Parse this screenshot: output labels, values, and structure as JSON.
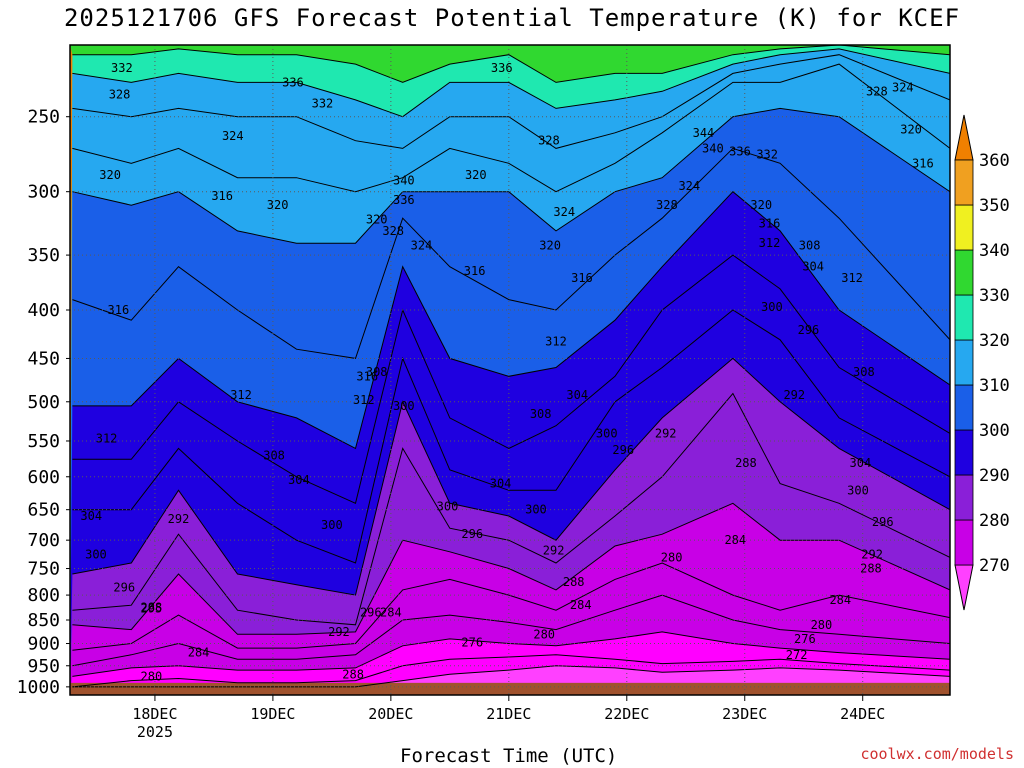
{
  "title": "2025121706 GFS Forecast Potential Temperature (K) for KCEF",
  "xlabel": "Forecast Time (UTC)",
  "credit": "coolwx.com/models",
  "chart_data": {
    "type": "contour-filled time-height cross section",
    "y_axis": {
      "quantity": "pressure level (hPa)",
      "orientation": "decreasing upward",
      "ticks": [
        250,
        300,
        350,
        400,
        450,
        500,
        550,
        600,
        650,
        700,
        750,
        800,
        850,
        900,
        950,
        1000
      ],
      "range": [
        1020,
        210
      ]
    },
    "x_axis": {
      "ticks": [
        "18DEC",
        "19DEC",
        "20DEC",
        "21DEC",
        "22DEC",
        "23DEC",
        "24DEC"
      ],
      "year_label": "2025",
      "range_days": [
        17.28,
        24.74
      ]
    },
    "grid": true,
    "colorbar": {
      "ticks": [
        270,
        280,
        290,
        300,
        310,
        320,
        330,
        340,
        350,
        360
      ],
      "colors": [
        "#ff00ff",
        "#c800e6",
        "#8a1fd8",
        "#1f00e0",
        "#1a5fe8",
        "#26a8f0",
        "#1fe8b0",
        "#30d830",
        "#f0f020",
        "#f0a020"
      ],
      "bottom_color": "#ff40ff",
      "top_color": "#f08000"
    },
    "isentropes": [
      {
        "theta": 272,
        "p": [
          1000,
          1000,
          1000,
          1000,
          1000,
          1000,
          985,
          970,
          960,
          950,
          955,
          965,
          960,
          955,
          960,
          975
        ]
      },
      {
        "theta": 276,
        "p": [
          1000,
          985,
          980,
          990,
          990,
          985,
          950,
          935,
          930,
          925,
          935,
          945,
          940,
          935,
          945,
          960
        ]
      },
      {
        "theta": 280,
        "p": [
          975,
          955,
          950,
          960,
          960,
          955,
          905,
          890,
          900,
          905,
          890,
          875,
          900,
          910,
          920,
          935
        ]
      },
      {
        "theta": 284,
        "p": [
          950,
          925,
          900,
          935,
          935,
          925,
          850,
          840,
          855,
          870,
          830,
          800,
          850,
          870,
          880,
          900
        ]
      },
      {
        "theta": 288,
        "p": [
          915,
          900,
          840,
          910,
          910,
          900,
          790,
          770,
          800,
          830,
          770,
          740,
          800,
          830,
          800,
          845
        ]
      },
      {
        "theta": 292,
        "p": [
          860,
          870,
          760,
          880,
          880,
          875,
          700,
          720,
          750,
          790,
          710,
          690,
          640,
          700,
          700,
          790
        ]
      },
      {
        "theta": 296,
        "p": [
          830,
          820,
          690,
          830,
          850,
          860,
          560,
          680,
          700,
          740,
          660,
          600,
          490,
          610,
          640,
          730
        ]
      },
      {
        "theta": 300,
        "p": [
          760,
          740,
          620,
          760,
          780,
          800,
          500,
          640,
          660,
          700,
          590,
          520,
          450,
          500,
          560,
          650
        ]
      },
      {
        "theta": 304,
        "p": [
          650,
          650,
          560,
          640,
          700,
          740,
          450,
          590,
          620,
          620,
          500,
          460,
          400,
          430,
          520,
          600
        ]
      },
      {
        "theta": 308,
        "p": [
          575,
          575,
          500,
          550,
          600,
          640,
          400,
          520,
          560,
          530,
          470,
          400,
          350,
          380,
          460,
          540
        ]
      },
      {
        "theta": 312,
        "p": [
          505,
          505,
          450,
          500,
          520,
          560,
          360,
          450,
          470,
          460,
          410,
          360,
          300,
          330,
          400,
          480
        ]
      },
      {
        "theta": 316,
        "p": [
          390,
          410,
          360,
          400,
          440,
          450,
          320,
          360,
          390,
          400,
          350,
          320,
          270,
          280,
          320,
          430
        ]
      },
      {
        "theta": 320,
        "p": [
          300,
          310,
          300,
          330,
          340,
          340,
          300,
          300,
          300,
          330,
          300,
          290,
          250,
          245,
          250,
          300
        ]
      },
      {
        "theta": 324,
        "p": [
          270,
          280,
          270,
          290,
          290,
          300,
          290,
          270,
          280,
          300,
          280,
          260,
          230,
          230,
          220,
          270
        ]
      },
      {
        "theta": 328,
        "p": [
          245,
          250,
          245,
          250,
          250,
          265,
          270,
          250,
          250,
          270,
          260,
          250,
          225,
          220,
          215,
          240
        ]
      },
      {
        "theta": 332,
        "p": [
          225,
          230,
          225,
          230,
          230,
          240,
          250,
          230,
          230,
          245,
          240,
          235,
          220,
          215,
          212,
          225
        ]
      },
      {
        "theta": 336,
        "p": [
          215,
          215,
          212,
          215,
          215,
          220,
          230,
          220,
          215,
          230,
          225,
          225,
          215,
          212,
          210,
          215
        ]
      }
    ],
    "isentrope_times_days": [
      17.3,
      17.8,
      18.2,
      18.7,
      19.2,
      19.7,
      20.1,
      20.5,
      21.0,
      21.4,
      21.9,
      22.3,
      22.9,
      23.3,
      23.8,
      24.74
    ],
    "labels": [
      {
        "t": "332",
        "d": 17.72,
        "p": 222
      },
      {
        "t": "328",
        "d": 17.7,
        "p": 237
      },
      {
        "t": "336",
        "d": 19.17,
        "p": 230
      },
      {
        "t": "332",
        "d": 19.42,
        "p": 242
      },
      {
        "t": "324",
        "d": 18.66,
        "p": 262
      },
      {
        "t": "336",
        "d": 20.94,
        "p": 222
      },
      {
        "t": "328",
        "d": 21.34,
        "p": 265
      },
      {
        "t": "344",
        "d": 22.65,
        "p": 260
      },
      {
        "t": "340",
        "d": 22.73,
        "p": 270
      },
      {
        "t": "336",
        "d": 22.96,
        "p": 272
      },
      {
        "t": "332",
        "d": 23.19,
        "p": 274
      },
      {
        "t": "328",
        "d": 24.12,
        "p": 235
      },
      {
        "t": "324",
        "d": 24.34,
        "p": 233
      },
      {
        "t": "320",
        "d": 24.41,
        "p": 258
      },
      {
        "t": "316",
        "d": 24.51,
        "p": 280
      },
      {
        "t": "320",
        "d": 17.62,
        "p": 288
      },
      {
        "t": "316",
        "d": 18.57,
        "p": 303
      },
      {
        "t": "320",
        "d": 19.04,
        "p": 310
      },
      {
        "t": "340",
        "d": 20.11,
        "p": 292
      },
      {
        "t": "336",
        "d": 20.11,
        "p": 306
      },
      {
        "t": "328",
        "d": 20.02,
        "p": 330
      },
      {
        "t": "320",
        "d": 19.88,
        "p": 321
      },
      {
        "t": "324",
        "d": 20.26,
        "p": 342
      },
      {
        "t": "320",
        "d": 20.72,
        "p": 288
      },
      {
        "t": "324",
        "d": 21.47,
        "p": 315
      },
      {
        "t": "320",
        "d": 21.35,
        "p": 342
      },
      {
        "t": "316",
        "d": 21.62,
        "p": 370
      },
      {
        "t": "316",
        "d": 20.71,
        "p": 364
      },
      {
        "t": "328",
        "d": 22.34,
        "p": 310
      },
      {
        "t": "324",
        "d": 22.53,
        "p": 296
      },
      {
        "t": "320",
        "d": 23.14,
        "p": 310
      },
      {
        "t": "316",
        "d": 23.21,
        "p": 324
      },
      {
        "t": "312",
        "d": 23.21,
        "p": 340
      },
      {
        "t": "308",
        "d": 23.55,
        "p": 342
      },
      {
        "t": "304",
        "d": 23.58,
        "p": 360
      },
      {
        "t": "312",
        "d": 23.91,
        "p": 370
      },
      {
        "t": "316",
        "d": 17.69,
        "p": 400
      },
      {
        "t": "300",
        "d": 23.23,
        "p": 397
      },
      {
        "t": "296",
        "d": 23.54,
        "p": 420
      },
      {
        "t": "312",
        "d": 21.4,
        "p": 432
      },
      {
        "t": "316",
        "d": 19.8,
        "p": 470
      },
      {
        "t": "308",
        "d": 19.88,
        "p": 465
      },
      {
        "t": "312",
        "d": 19.77,
        "p": 498
      },
      {
        "t": "312",
        "d": 18.73,
        "p": 492
      },
      {
        "t": "300",
        "d": 20.11,
        "p": 505
      },
      {
        "t": "304",
        "d": 21.58,
        "p": 492
      },
      {
        "t": "308",
        "d": 21.27,
        "p": 515
      },
      {
        "t": "300",
        "d": 21.83,
        "p": 540
      },
      {
        "t": "296",
        "d": 21.97,
        "p": 562
      },
      {
        "t": "292",
        "d": 22.33,
        "p": 540
      },
      {
        "t": "292",
        "d": 23.42,
        "p": 492
      },
      {
        "t": "308",
        "d": 24.01,
        "p": 465
      },
      {
        "t": "288",
        "d": 23.01,
        "p": 580
      },
      {
        "t": "304",
        "d": 23.98,
        "p": 580
      },
      {
        "t": "312",
        "d": 17.59,
        "p": 547
      },
      {
        "t": "308",
        "d": 19.01,
        "p": 570
      },
      {
        "t": "304",
        "d": 19.22,
        "p": 605
      },
      {
        "t": "304",
        "d": 20.93,
        "p": 610
      },
      {
        "t": "300",
        "d": 20.48,
        "p": 645
      },
      {
        "t": "300",
        "d": 23.96,
        "p": 620
      },
      {
        "t": "300",
        "d": 21.23,
        "p": 650
      },
      {
        "t": "296",
        "d": 20.69,
        "p": 690
      },
      {
        "t": "292",
        "d": 21.38,
        "p": 718
      },
      {
        "t": "296",
        "d": 24.17,
        "p": 670
      },
      {
        "t": "292",
        "d": 24.08,
        "p": 725
      },
      {
        "t": "288",
        "d": 24.07,
        "p": 750
      },
      {
        "t": "284",
        "d": 22.92,
        "p": 700
      },
      {
        "t": "280",
        "d": 22.38,
        "p": 730
      },
      {
        "t": "288",
        "d": 21.55,
        "p": 775
      },
      {
        "t": "284",
        "d": 21.61,
        "p": 820
      },
      {
        "t": "284",
        "d": 23.81,
        "p": 810
      },
      {
        "t": "280",
        "d": 23.65,
        "p": 860
      },
      {
        "t": "276",
        "d": 23.51,
        "p": 890
      },
      {
        "t": "272",
        "d": 23.44,
        "p": 925
      },
      {
        "t": "280",
        "d": 21.3,
        "p": 880
      },
      {
        "t": "276",
        "d": 20.69,
        "p": 898
      },
      {
        "t": "304",
        "d": 17.46,
        "p": 660
      },
      {
        "t": "300",
        "d": 17.5,
        "p": 725
      },
      {
        "t": "292",
        "d": 18.2,
        "p": 665
      },
      {
        "t": "300",
        "d": 19.5,
        "p": 675
      },
      {
        "t": "296",
        "d": 17.74,
        "p": 785
      },
      {
        "t": "295",
        "d": 17.97,
        "p": 827
      },
      {
        "t": "288",
        "d": 17.97,
        "p": 825
      },
      {
        "t": "284",
        "d": 18.37,
        "p": 920
      },
      {
        "t": "280",
        "d": 17.97,
        "p": 975
      },
      {
        "t": "292",
        "d": 19.56,
        "p": 875
      },
      {
        "t": "296",
        "d": 19.83,
        "p": 835
      },
      {
        "t": "284",
        "d": 20.0,
        "p": 835
      },
      {
        "t": "288",
        "d": 19.68,
        "p": 970
      }
    ]
  }
}
